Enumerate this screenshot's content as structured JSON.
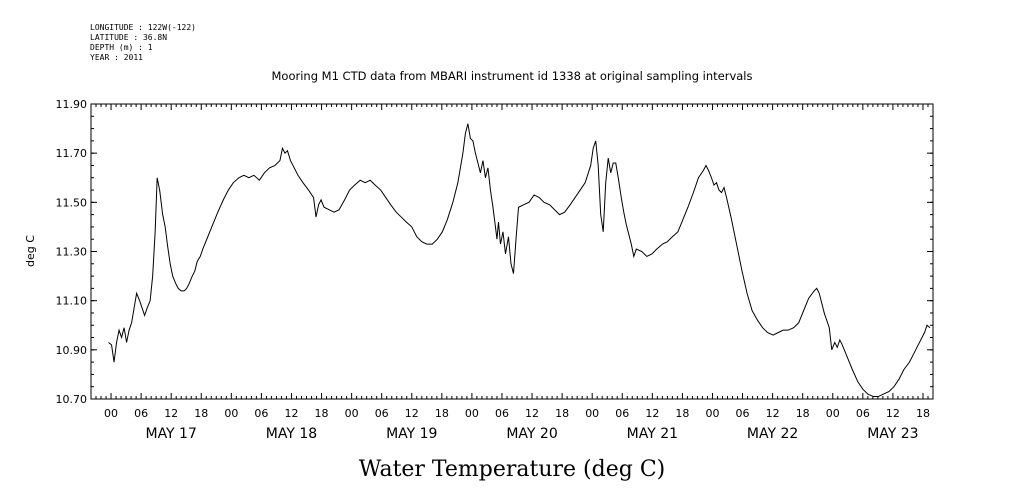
{
  "metadata": {
    "longitude": "LONGITUDE : 122W(-122)",
    "latitude": "LATITUDE : 36.8N",
    "depth": "DEPTH (m) : 1",
    "year": "YEAR : 2011"
  },
  "chart_data": {
    "type": "line",
    "title": "Mooring M1 CTD data from MBARI instrument id 1338 at original sampling intervals",
    "xlabel": "Water Temperature (deg C)",
    "ylabel": "deg C",
    "ylim": [
      10.7,
      11.9
    ],
    "xlim_hours": [
      -4,
      164
    ],
    "y_ticks": [
      "10.70",
      "10.90",
      "11.10",
      "11.30",
      "11.50",
      "11.70",
      "11.90"
    ],
    "x_hour_ticks": [
      "00",
      "06",
      "12",
      "18",
      "00",
      "06",
      "12",
      "18",
      "00",
      "06",
      "12",
      "18",
      "00",
      "06",
      "12",
      "18",
      "00",
      "06",
      "12",
      "18",
      "00",
      "06",
      "12",
      "18",
      "00",
      "06",
      "12",
      "18"
    ],
    "days": [
      "MAY 17",
      "MAY 18",
      "MAY 19",
      "MAY 20",
      "MAY 21",
      "MAY 22",
      "MAY 23"
    ],
    "grid": false,
    "series": [
      {
        "color": "#000000",
        "points": [
          [
            -0.5,
            10.93
          ],
          [
            0.1,
            10.92
          ],
          [
            0.6,
            10.85
          ],
          [
            1.1,
            10.93
          ],
          [
            1.6,
            10.98
          ],
          [
            2.1,
            10.95
          ],
          [
            2.6,
            10.99
          ],
          [
            3.1,
            10.93
          ],
          [
            3.6,
            10.98
          ],
          [
            4.1,
            11.01
          ],
          [
            4.6,
            11.07
          ],
          [
            5.1,
            11.13
          ],
          [
            5.7,
            11.1
          ],
          [
            6.2,
            11.07
          ],
          [
            6.7,
            11.04
          ],
          [
            7.2,
            11.07
          ],
          [
            7.8,
            11.1
          ],
          [
            8.3,
            11.2
          ],
          [
            8.8,
            11.38
          ],
          [
            9.2,
            11.6
          ],
          [
            9.7,
            11.55
          ],
          [
            10.3,
            11.45
          ],
          [
            10.8,
            11.4
          ],
          [
            11.3,
            11.32
          ],
          [
            11.8,
            11.25
          ],
          [
            12.3,
            11.2
          ],
          [
            12.9,
            11.17
          ],
          [
            13.4,
            11.15
          ],
          [
            14.0,
            11.14
          ],
          [
            14.6,
            11.14
          ],
          [
            15.1,
            11.15
          ],
          [
            15.6,
            11.17
          ],
          [
            16.2,
            11.2
          ],
          [
            16.7,
            11.22
          ],
          [
            17.2,
            11.26
          ],
          [
            17.8,
            11.28
          ],
          [
            18.3,
            11.31
          ],
          [
            19.3,
            11.36
          ],
          [
            20.3,
            11.41
          ],
          [
            21.3,
            11.46
          ],
          [
            22.4,
            11.51
          ],
          [
            23.4,
            11.55
          ],
          [
            24.4,
            11.58
          ],
          [
            25.5,
            11.6
          ],
          [
            26.5,
            11.61
          ],
          [
            27.5,
            11.6
          ],
          [
            28.5,
            11.61
          ],
          [
            29.6,
            11.59
          ],
          [
            30.6,
            11.62
          ],
          [
            31.6,
            11.64
          ],
          [
            32.7,
            11.65
          ],
          [
            33.7,
            11.67
          ],
          [
            34.2,
            11.72
          ],
          [
            34.7,
            11.7
          ],
          [
            35.2,
            11.71
          ],
          [
            35.8,
            11.67
          ],
          [
            36.3,
            11.65
          ],
          [
            36.8,
            11.63
          ],
          [
            37.3,
            11.61
          ],
          [
            38.3,
            11.58
          ],
          [
            39.4,
            11.55
          ],
          [
            40.4,
            11.52
          ],
          [
            40.9,
            11.44
          ],
          [
            41.4,
            11.49
          ],
          [
            41.9,
            11.51
          ],
          [
            42.5,
            11.48
          ],
          [
            43.5,
            11.47
          ],
          [
            44.5,
            11.46
          ],
          [
            45.5,
            11.47
          ],
          [
            46.6,
            11.51
          ],
          [
            47.6,
            11.55
          ],
          [
            48.6,
            11.57
          ],
          [
            49.7,
            11.59
          ],
          [
            50.7,
            11.58
          ],
          [
            51.7,
            11.59
          ],
          [
            52.7,
            11.57
          ],
          [
            53.8,
            11.55
          ],
          [
            54.8,
            11.52
          ],
          [
            55.8,
            11.49
          ],
          [
            56.9,
            11.46
          ],
          [
            57.9,
            11.44
          ],
          [
            58.9,
            11.42
          ],
          [
            60.0,
            11.4
          ],
          [
            61.0,
            11.36
          ],
          [
            62.0,
            11.34
          ],
          [
            63.0,
            11.33
          ],
          [
            64.1,
            11.33
          ],
          [
            65.1,
            11.35
          ],
          [
            66.1,
            11.38
          ],
          [
            67.1,
            11.43
          ],
          [
            68.2,
            11.5
          ],
          [
            69.2,
            11.58
          ],
          [
            70.2,
            11.7
          ],
          [
            70.7,
            11.78
          ],
          [
            71.2,
            11.82
          ],
          [
            71.7,
            11.76
          ],
          [
            72.2,
            11.75
          ],
          [
            72.7,
            11.7
          ],
          [
            73.2,
            11.66
          ],
          [
            73.7,
            11.62
          ],
          [
            74.2,
            11.67
          ],
          [
            74.7,
            11.6
          ],
          [
            75.2,
            11.64
          ],
          [
            75.7,
            11.55
          ],
          [
            76.2,
            11.48
          ],
          [
            76.7,
            11.4
          ],
          [
            77.0,
            11.35
          ],
          [
            77.3,
            11.42
          ],
          [
            77.7,
            11.33
          ],
          [
            78.2,
            11.38
          ],
          [
            78.7,
            11.29
          ],
          [
            79.3,
            11.36
          ],
          [
            79.8,
            11.25
          ],
          [
            80.3,
            11.21
          ],
          [
            80.8,
            11.35
          ],
          [
            81.3,
            11.48
          ],
          [
            82.3,
            11.49
          ],
          [
            83.4,
            11.5
          ],
          [
            84.4,
            11.53
          ],
          [
            85.4,
            11.52
          ],
          [
            86.4,
            11.5
          ],
          [
            87.5,
            11.49
          ],
          [
            88.5,
            11.47
          ],
          [
            89.5,
            11.45
          ],
          [
            90.5,
            11.46
          ],
          [
            91.6,
            11.49
          ],
          [
            92.6,
            11.52
          ],
          [
            93.6,
            11.55
          ],
          [
            94.6,
            11.58
          ],
          [
            95.7,
            11.65
          ],
          [
            96.2,
            11.72
          ],
          [
            96.7,
            11.75
          ],
          [
            97.2,
            11.65
          ],
          [
            97.7,
            11.45
          ],
          [
            98.2,
            11.38
          ],
          [
            98.7,
            11.58
          ],
          [
            99.2,
            11.68
          ],
          [
            99.7,
            11.62
          ],
          [
            100.2,
            11.66
          ],
          [
            100.7,
            11.66
          ],
          [
            101.2,
            11.6
          ],
          [
            101.8,
            11.52
          ],
          [
            102.3,
            11.46
          ],
          [
            102.8,
            11.41
          ],
          [
            103.3,
            11.37
          ],
          [
            103.8,
            11.33
          ],
          [
            104.3,
            11.28
          ],
          [
            104.8,
            11.31
          ],
          [
            105.9,
            11.3
          ],
          [
            106.9,
            11.28
          ],
          [
            107.9,
            11.29
          ],
          [
            108.9,
            11.31
          ],
          [
            110.0,
            11.33
          ],
          [
            111.0,
            11.34
          ],
          [
            112.0,
            11.36
          ],
          [
            113.1,
            11.38
          ],
          [
            114.1,
            11.43
          ],
          [
            115.1,
            11.48
          ],
          [
            116.2,
            11.54
          ],
          [
            117.2,
            11.6
          ],
          [
            118.2,
            11.63
          ],
          [
            118.7,
            11.65
          ],
          [
            119.2,
            11.63
          ],
          [
            119.8,
            11.6
          ],
          [
            120.3,
            11.57
          ],
          [
            120.8,
            11.58
          ],
          [
            121.3,
            11.55
          ],
          [
            121.8,
            11.54
          ],
          [
            122.3,
            11.56
          ],
          [
            122.8,
            11.52
          ],
          [
            123.8,
            11.43
          ],
          [
            124.9,
            11.32
          ],
          [
            125.9,
            11.22
          ],
          [
            126.9,
            11.13
          ],
          [
            127.9,
            11.06
          ],
          [
            129.0,
            11.02
          ],
          [
            130.0,
            10.99
          ],
          [
            131.0,
            10.97
          ],
          [
            132.1,
            10.96
          ],
          [
            133.1,
            10.97
          ],
          [
            134.1,
            10.98
          ],
          [
            135.1,
            10.98
          ],
          [
            136.2,
            10.99
          ],
          [
            137.2,
            11.01
          ],
          [
            138.2,
            11.06
          ],
          [
            139.2,
            11.11
          ],
          [
            140.3,
            11.14
          ],
          [
            140.8,
            11.15
          ],
          [
            141.3,
            11.13
          ],
          [
            142.3,
            11.05
          ],
          [
            143.3,
            10.99
          ],
          [
            143.8,
            10.9
          ],
          [
            144.4,
            10.93
          ],
          [
            144.9,
            10.91
          ],
          [
            145.4,
            10.94
          ],
          [
            145.9,
            10.92
          ],
          [
            146.9,
            10.87
          ],
          [
            147.9,
            10.82
          ],
          [
            149.0,
            10.77
          ],
          [
            150.0,
            10.74
          ],
          [
            151.0,
            10.72
          ],
          [
            152.1,
            10.71
          ],
          [
            153.1,
            10.71
          ],
          [
            154.1,
            10.72
          ],
          [
            155.2,
            10.73
          ],
          [
            156.2,
            10.75
          ],
          [
            157.2,
            10.78
          ],
          [
            158.2,
            10.82
          ],
          [
            159.3,
            10.85
          ],
          [
            160.3,
            10.89
          ],
          [
            161.3,
            10.93
          ],
          [
            162.3,
            10.97
          ],
          [
            162.8,
            11.0
          ],
          [
            163.4,
            10.99
          ]
        ]
      }
    ]
  }
}
